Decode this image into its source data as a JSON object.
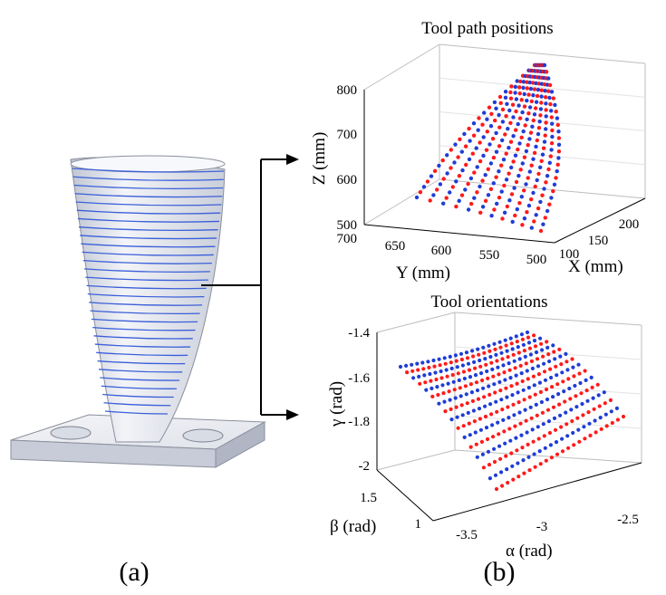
{
  "captions": {
    "left": "(a)",
    "right": "(b)"
  },
  "colors": {
    "path_red": "#ff1a1a",
    "path_blue": "#1f3dd6",
    "blade_line": "#3a5fd9",
    "blade_fill": "#e4e7ee"
  },
  "chart_data": [
    {
      "type": "scatter3d",
      "title": "Tool path positions",
      "xlabel": "X (mm)",
      "ylabel": "Y (mm)",
      "zlabel": "Z (mm)",
      "x_ticks": [
        "100",
        "150",
        "200"
      ],
      "y_ticks": [
        "700",
        "650",
        "600",
        "550",
        "500"
      ],
      "z_ticks": [
        "500",
        "600",
        "700",
        "800"
      ],
      "xlim": [
        80,
        230
      ],
      "ylim": [
        490,
        710
      ],
      "zlim": [
        500,
        830
      ],
      "grid": true,
      "series": [
        {
          "color": "red"
        },
        {
          "color": "blue"
        }
      ]
    },
    {
      "type": "scatter3d",
      "title": "Tool orientations",
      "xlabel": "α (rad)",
      "ylabel": "β (rad)",
      "zlabel": "γ (rad)",
      "x_ticks": [
        "-3.5",
        "-3",
        "-2.5"
      ],
      "y_ticks": [
        "1.5",
        "1"
      ],
      "z_ticks": [
        "-1.4",
        "-1.6",
        "-1.8",
        "-2"
      ],
      "xlim": [
        -3.7,
        -2.4
      ],
      "ylim": [
        0.9,
        1.7
      ],
      "zlim": [
        -2.0,
        -1.4
      ],
      "grid": true,
      "series": [
        {
          "color": "red"
        },
        {
          "color": "blue"
        }
      ]
    }
  ]
}
